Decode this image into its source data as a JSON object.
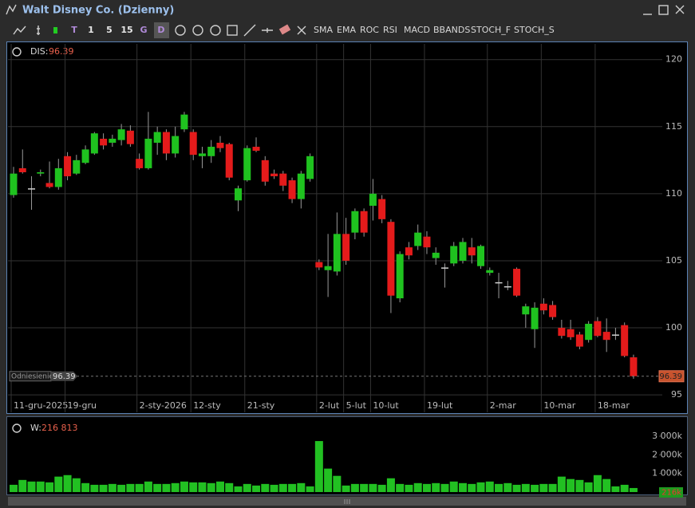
{
  "window": {
    "title": "Walt Disney Co. (Dzienny)"
  },
  "toolbar": {
    "buttons": [
      "T",
      "1",
      "5",
      "15",
      "G",
      "D"
    ],
    "indicators": [
      "SMA",
      "EMA",
      "ROC",
      "RSI",
      "MACD",
      "BBANDS",
      "STOCH_F",
      "STOCH_S"
    ]
  },
  "chart_data": [
    {
      "type": "candlestick",
      "symbol": "DIS:",
      "reference_label": "Odniesienie",
      "categories": [
        "11-gru-2025",
        null,
        null,
        null,
        null,
        null,
        "19-gru",
        null,
        null,
        null,
        null,
        null,
        null,
        null,
        "2-sty-2026",
        null,
        null,
        null,
        null,
        null,
        "12-sty",
        null,
        null,
        null,
        null,
        null,
        "21-sty",
        null,
        null,
        null,
        null,
        null,
        null,
        null,
        "2-lut",
        null,
        null,
        "5-lut",
        null,
        null,
        "10-lut",
        null,
        null,
        null,
        null,
        null,
        "19-lut",
        null,
        null,
        null,
        null,
        null,
        null,
        "2-mar",
        null,
        null,
        null,
        null,
        null,
        "10-mar",
        null,
        null,
        null,
        null,
        null,
        "18-mar",
        null,
        null,
        null,
        null
      ],
      "open": [
        109.9,
        111.9,
        110.4,
        111.5,
        110.8,
        110.5,
        112.8,
        111.5,
        112.3,
        113.0,
        114.1,
        113.8,
        114.0,
        114.7,
        112.6,
        111.9,
        113.8,
        114.6,
        113.0,
        114.8,
        114.6,
        112.8,
        112.8,
        113.8,
        113.7,
        109.5,
        111.0,
        113.5,
        112.5,
        111.5,
        111.5,
        111.0,
        109.6,
        111.1,
        104.9,
        104.3,
        104.2,
        107.0,
        107.1,
        108.7,
        109.1,
        109.6,
        107.9,
        102.2,
        106.0,
        106.1,
        106.8,
        105.2,
        104.5,
        104.8,
        105.0,
        106.0,
        104.6,
        104.1,
        103.4,
        103.1,
        104.4,
        101.0,
        99.9,
        101.8,
        101.7,
        100.0,
        99.9,
        99.5,
        99.1,
        100.5,
        99.7,
        99.5,
        100.2,
        97.8
      ],
      "high": [
        112.0,
        113.3,
        111.3,
        111.8,
        112.4,
        112.6,
        113.1,
        112.9,
        113.6,
        114.6,
        114.5,
        114.4,
        115.2,
        115.1,
        113.0,
        116.1,
        115.0,
        114.8,
        115.0,
        116.1,
        114.8,
        113.5,
        114.0,
        114.3,
        113.8,
        110.6,
        113.6,
        114.2,
        112.8,
        111.8,
        111.7,
        111.2,
        111.7,
        113.0,
        105.1,
        107.0,
        108.6,
        108.2,
        108.9,
        108.9,
        111.1,
        109.9,
        108.1,
        105.7,
        106.4,
        107.7,
        107.2,
        106.0,
        104.8,
        106.4,
        106.7,
        106.7,
        106.2,
        104.5,
        104.1,
        103.5,
        104.5,
        101.8,
        101.9,
        102.2,
        102.0,
        100.6,
        100.6,
        99.7,
        100.5,
        100.8,
        100.7,
        100.0,
        100.4,
        98.0
      ],
      "low": [
        109.7,
        111.5,
        108.8,
        111.3,
        110.4,
        110.3,
        111.0,
        111.4,
        112.2,
        112.9,
        113.3,
        113.5,
        113.6,
        113.5,
        111.8,
        111.8,
        112.9,
        112.5,
        112.7,
        114.6,
        112.5,
        111.9,
        112.3,
        113.1,
        111.0,
        108.7,
        110.9,
        113.1,
        110.6,
        111.1,
        110.2,
        109.3,
        108.9,
        110.9,
        104.3,
        102.3,
        103.9,
        104.7,
        106.6,
        106.8,
        108.0,
        107.8,
        101.1,
        101.9,
        105.1,
        105.8,
        105.5,
        104.7,
        103.0,
        104.6,
        104.8,
        104.8,
        104.4,
        103.9,
        102.2,
        102.8,
        102.3,
        100.0,
        98.5,
        101.0,
        100.6,
        99.2,
        99.1,
        98.4,
        98.9,
        99.3,
        98.2,
        99.1,
        97.8,
        96.2
      ],
      "close": [
        111.5,
        111.6,
        110.4,
        111.6,
        110.5,
        111.9,
        111.3,
        112.5,
        113.3,
        114.5,
        113.6,
        114.1,
        114.8,
        113.7,
        111.9,
        114.1,
        114.6,
        113.0,
        114.3,
        115.9,
        112.9,
        113.0,
        113.5,
        113.4,
        111.2,
        110.4,
        113.4,
        113.2,
        110.9,
        111.3,
        110.6,
        109.6,
        111.5,
        112.8,
        104.5,
        104.6,
        107.0,
        105.0,
        108.7,
        107.1,
        110.0,
        108.1,
        102.4,
        105.5,
        105.4,
        107.1,
        106.0,
        105.6,
        104.5,
        106.1,
        106.4,
        105.4,
        106.1,
        104.3,
        103.4,
        103.1,
        102.4,
        101.6,
        101.5,
        101.3,
        100.8,
        99.4,
        99.3,
        98.6,
        100.3,
        99.4,
        99.1,
        99.5,
        97.9,
        96.39
      ],
      "up_color": "#1fc21f",
      "down_color": "#e41b1b",
      "flat_color": "#d0d0d0",
      "ylim": [
        93.7,
        120.4
      ],
      "yticks": [
        95,
        100,
        105,
        110,
        115,
        120
      ],
      "grid": true
    },
    {
      "type": "bar",
      "name": "W:",
      "legend_value_label": "216 813",
      "color": "#22c022",
      "values": [
        390000,
        650000,
        565000,
        565000,
        520000,
        830000,
        910000,
        740000,
        480000,
        390000,
        390000,
        435000,
        390000,
        435000,
        435000,
        565000,
        435000,
        435000,
        480000,
        565000,
        520000,
        520000,
        480000,
        565000,
        480000,
        305000,
        435000,
        350000,
        435000,
        390000,
        435000,
        435000,
        480000,
        305000,
        2740000,
        1260000,
        870000,
        350000,
        435000,
        435000,
        435000,
        390000,
        740000,
        435000,
        390000,
        480000,
        435000,
        480000,
        435000,
        565000,
        480000,
        435000,
        520000,
        565000,
        435000,
        480000,
        390000,
        435000,
        390000,
        435000,
        435000,
        830000,
        700000,
        650000,
        520000,
        910000,
        700000,
        305000,
        390000,
        216813
      ],
      "value_labels": [
        null,
        null,
        null,
        null,
        null,
        null,
        null,
        null,
        null,
        null,
        null,
        null,
        null,
        null,
        null,
        null,
        null,
        null,
        null,
        null,
        null,
        null,
        null,
        null,
        null,
        null,
        null,
        null,
        null,
        null,
        null,
        null,
        null,
        null,
        null,
        null,
        null,
        null,
        null,
        null,
        null,
        null,
        null,
        null,
        null,
        null,
        null,
        null,
        null,
        null,
        null,
        null,
        null,
        null,
        null,
        null,
        null,
        null,
        null,
        null,
        null,
        null,
        null,
        null,
        null,
        null,
        null,
        null,
        null,
        "216k"
      ],
      "ylim": [
        0,
        3300000
      ],
      "yticks": [
        {
          "value": 1000000,
          "label": "1 000k"
        },
        {
          "value": 2000000,
          "label": "2 000k"
        },
        {
          "value": 3000000,
          "label": "3 000k"
        }
      ]
    }
  ]
}
